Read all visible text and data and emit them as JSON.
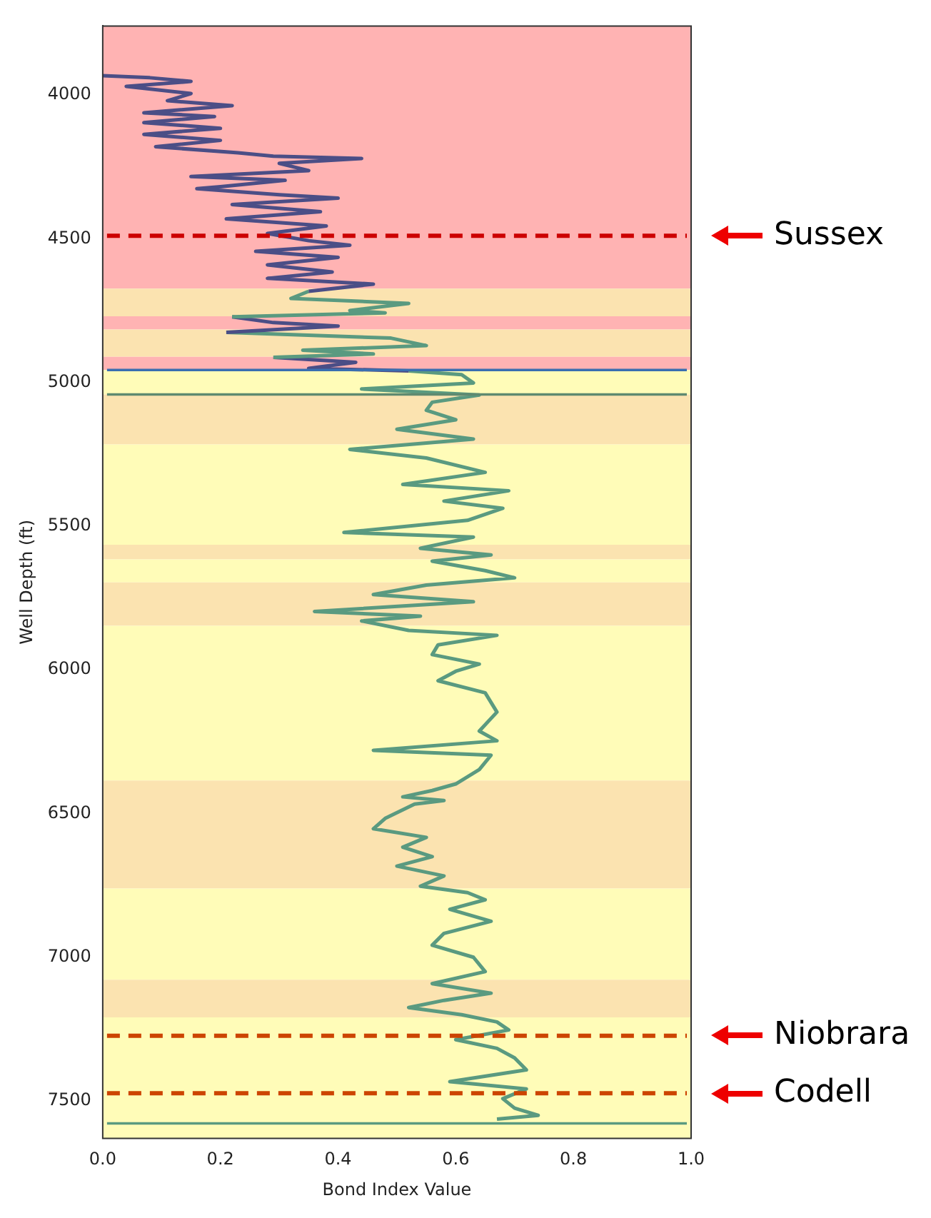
{
  "chart_data": {
    "type": "line",
    "xlabel": "Bond Index Value",
    "ylabel": "Well Depth (ft)",
    "xlim": [
      0,
      1
    ],
    "xticks": [
      {
        "value": 0,
        "label": "0.0"
      },
      {
        "value": 0.2,
        "label": "0.2"
      },
      {
        "value": 0.4,
        "label": "0.4"
      },
      {
        "value": 0.6,
        "label": "0.6"
      },
      {
        "value": 0.8,
        "label": "0.8"
      },
      {
        "value": 1,
        "label": "1.0"
      }
    ],
    "ylim": [
      7630,
      3760
    ],
    "yticks": [
      4000,
      4500,
      5000,
      5500,
      6000,
      6500,
      7000,
      7500
    ],
    "grid": false,
    "legend": false,
    "marker": "none",
    "line_style": "solid",
    "series": [
      {
        "color": "#4b4e86",
        "x": [
          0.0,
          0.08,
          0.15,
          0.04,
          0.15,
          0.11,
          0.22,
          0.07,
          0.19,
          0.07,
          0.2,
          0.07,
          0.2,
          0.09,
          0.23,
          0.29,
          0.44,
          0.3,
          0.35,
          0.15,
          0.31,
          0.2,
          0.16,
          0.3,
          0.4,
          0.22,
          0.37,
          0.21,
          0.38,
          0.28,
          0.35,
          0.42,
          0.26,
          0.4,
          0.28,
          0.39,
          0.28,
          0.46,
          0.35
        ],
        "values": [
          3933,
          3940,
          3953,
          3970,
          3995,
          4020,
          4037,
          4062,
          4075,
          4096,
          4116,
          4137,
          4158,
          4180,
          4201,
          4213,
          4221,
          4238,
          4263,
          4284,
          4297,
          4319,
          4326,
          4347,
          4359,
          4381,
          4406,
          4431,
          4456,
          4482,
          4507,
          4523,
          4544,
          4565,
          4591,
          4616,
          4638,
          4658,
          4683
        ]
      },
      {
        "color": "#5a9a80",
        "x": [
          0.35,
          0.32,
          0.52,
          0.42,
          0.48,
          0.22
        ],
        "values": [
          4683,
          4708,
          4725,
          4750,
          4758,
          4772
        ]
      },
      {
        "color": "#4b4e86",
        "x": [
          0.22,
          0.29,
          0.4,
          0.21
        ],
        "values": [
          4772,
          4792,
          4804,
          4826
        ]
      },
      {
        "color": "#5a9a80",
        "x": [
          0.21,
          0.49,
          0.55,
          0.34,
          0.46,
          0.29
        ],
        "values": [
          4826,
          4846,
          4872,
          4888,
          4901,
          4913
        ]
      },
      {
        "color": "#4b4e86",
        "x": [
          0.29,
          0.43,
          0.35,
          0.52
        ],
        "values": [
          4913,
          4930,
          4951,
          4960
        ]
      },
      {
        "color": "#5a9a80",
        "x": [
          0.52,
          0.61,
          0.63,
          0.44,
          0.64,
          0.56,
          0.55,
          0.6,
          0.5,
          0.63,
          0.42,
          0.55,
          0.65,
          0.51,
          0.69,
          0.58,
          0.68,
          0.62,
          0.41,
          0.63,
          0.54,
          0.66,
          0.56,
          0.65,
          0.7,
          0.55,
          0.46,
          0.63,
          0.36,
          0.54,
          0.44,
          0.52,
          0.67,
          0.57,
          0.56,
          0.64,
          0.6,
          0.57,
          0.65,
          0.67,
          0.64,
          0.67,
          0.46,
          0.66,
          0.64,
          0.6,
          0.56,
          0.51,
          0.58,
          0.53,
          0.48,
          0.46,
          0.55,
          0.51,
          0.56,
          0.5,
          0.58,
          0.54,
          0.62,
          0.65,
          0.59,
          0.66,
          0.58,
          0.56,
          0.63,
          0.65,
          0.56,
          0.66,
          0.58,
          0.52,
          0.61,
          0.67,
          0.69,
          0.6,
          0.67,
          0.7,
          0.72,
          0.59,
          0.72,
          0.68,
          0.7,
          0.74,
          0.67
        ],
        "values": [
          4960,
          4973,
          5002,
          5023,
          5044,
          5069,
          5097,
          5130,
          5163,
          5197,
          5233,
          5263,
          5313,
          5355,
          5377,
          5413,
          5438,
          5480,
          5522,
          5538,
          5577,
          5600,
          5622,
          5655,
          5680,
          5705,
          5738,
          5763,
          5797,
          5813,
          5830,
          5863,
          5880,
          5913,
          5947,
          5980,
          6005,
          6038,
          6080,
          6147,
          6213,
          6247,
          6280,
          6297,
          6347,
          6397,
          6420,
          6442,
          6455,
          6467,
          6517,
          6553,
          6583,
          6617,
          6650,
          6683,
          6717,
          6753,
          6775,
          6800,
          6833,
          6875,
          6917,
          6958,
          7000,
          7050,
          7092,
          7125,
          7150,
          7175,
          7200,
          7225,
          7253,
          7287,
          7317,
          7350,
          7392,
          7433,
          7458,
          7492,
          7525,
          7550,
          7563
        ]
      }
    ],
    "bands": [
      {
        "axis": "y",
        "from": 3760,
        "to": 4674,
        "color": "#ffb3b3"
      },
      {
        "axis": "y",
        "from": 4674,
        "to": 4770,
        "color": "#fbe3b0"
      },
      {
        "axis": "y",
        "from": 4770,
        "to": 4816,
        "color": "#ffb3b3"
      },
      {
        "axis": "y",
        "from": 4816,
        "to": 4911,
        "color": "#fbe3b0"
      },
      {
        "axis": "y",
        "from": 4911,
        "to": 4957,
        "color": "#ffb3b3"
      },
      {
        "axis": "y",
        "from": 4957,
        "to": 5042,
        "color": "#fffcb8"
      },
      {
        "axis": "y",
        "from": 5042,
        "to": 5216,
        "color": "#fbe3b0"
      },
      {
        "axis": "y",
        "from": 5216,
        "to": 5565,
        "color": "#fffcb8"
      },
      {
        "axis": "y",
        "from": 5565,
        "to": 5616,
        "color": "#fbe3b0"
      },
      {
        "axis": "y",
        "from": 5616,
        "to": 5696,
        "color": "#fffcb8"
      },
      {
        "axis": "y",
        "from": 5696,
        "to": 5847,
        "color": "#fbe3b0"
      },
      {
        "axis": "y",
        "from": 5847,
        "to": 6385,
        "color": "#fffcb8"
      },
      {
        "axis": "y",
        "from": 6385,
        "to": 6761,
        "color": "#fbe3b0"
      },
      {
        "axis": "y",
        "from": 6761,
        "to": 7078,
        "color": "#fffcb8"
      },
      {
        "axis": "y",
        "from": 7078,
        "to": 7209,
        "color": "#fbe3b0"
      },
      {
        "axis": "y",
        "from": 7209,
        "to": 7630,
        "color": "#fffcb8"
      }
    ],
    "ref_lines": [
      {
        "axis": "y",
        "value": 4490,
        "label": "Sussex",
        "color": "#cc0000",
        "line_style": "dashed"
      },
      {
        "axis": "y",
        "value": 7273,
        "label": "Niobrara",
        "color": "#cc4400",
        "line_style": "dashed"
      },
      {
        "axis": "y",
        "value": 7473,
        "label": "Codell",
        "color": "#cc4400",
        "line_style": "dashed"
      },
      {
        "axis": "y",
        "value": 4957,
        "color": "#3a6fb0",
        "line_style": "solid"
      },
      {
        "axis": "y",
        "value": 5042,
        "color": "#5f8a70",
        "line_style": "solid"
      },
      {
        "axis": "y",
        "value": 7578,
        "color": "#5a9a80",
        "line_style": "solid"
      }
    ]
  }
}
